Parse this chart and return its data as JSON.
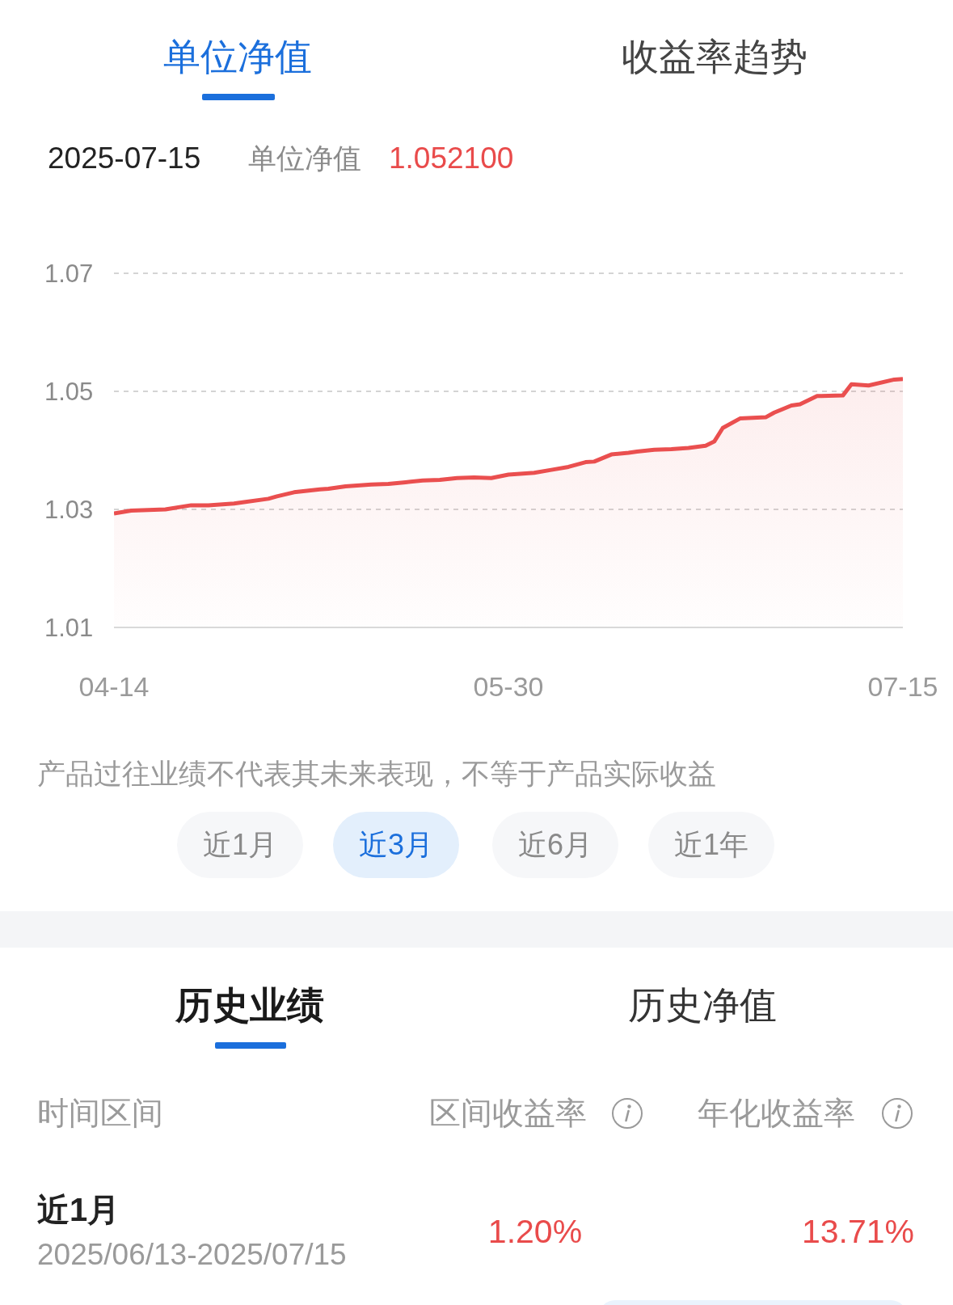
{
  "chart_data": [
    {
      "type": "area",
      "x": [
        "2025-04-14",
        "2025-04-16",
        "2025-04-20",
        "2025-04-23",
        "2025-04-25",
        "2025-04-28",
        "2025-04-29",
        "2025-05-02",
        "2025-05-03",
        "2025-05-05",
        "2025-05-08",
        "2025-05-09",
        "2025-05-11",
        "2025-05-14",
        "2025-05-16",
        "2025-05-18",
        "2025-05-20",
        "2025-05-22",
        "2025-05-24",
        "2025-05-26",
        "2025-05-28",
        "2025-05-30",
        "2025-06-02",
        "2025-06-04",
        "2025-06-06",
        "2025-06-08",
        "2025-06-09",
        "2025-06-11",
        "2025-06-13",
        "2025-06-14",
        "2025-06-16",
        "2025-06-18",
        "2025-06-20",
        "2025-06-22",
        "2025-06-23",
        "2025-06-24",
        "2025-06-26",
        "2025-06-29",
        "2025-06-30",
        "2025-07-02",
        "2025-07-03",
        "2025-07-05",
        "2025-07-08",
        "2025-07-09",
        "2025-07-11",
        "2025-07-14",
        "2025-07-15"
      ],
      "series": [
        {
          "color": "#ea4f4f",
          "values": [
            1.0293,
            1.0298,
            1.03,
            1.0307,
            1.0307,
            1.031,
            1.0312,
            1.0318,
            1.0322,
            1.0329,
            1.0334,
            1.0335,
            1.0339,
            1.0342,
            1.0343,
            1.0346,
            1.0349,
            1.035,
            1.0353,
            1.0354,
            1.0353,
            1.0359,
            1.0362,
            1.0367,
            1.0372,
            1.038,
            1.0381,
            1.0393,
            1.0396,
            1.0398,
            1.0401,
            1.0402,
            1.0404,
            1.0408,
            1.0415,
            1.0438,
            1.0454,
            1.0456,
            1.0464,
            1.0476,
            1.0478,
            1.0492,
            1.0493,
            1.0512,
            1.051,
            1.052,
            1.0521
          ]
        }
      ],
      "xlim": [
        "2025-04-14",
        "2025-07-15"
      ],
      "xticks": [
        {
          "value": "2025-04-14",
          "label": "04-14"
        },
        {
          "value": "2025-05-30",
          "label": "05-30"
        },
        {
          "value": "2025-07-15",
          "label": "07-15"
        }
      ],
      "ylim": [
        1.01,
        1.07
      ],
      "yticks": [
        1.01,
        1.03,
        1.05,
        1.07
      ],
      "grid": "y",
      "annotations": [
        "单位净值",
        "收益率趋势",
        "2025-07-15",
        "单位净值",
        "1.052100",
        "产品过往业绩不代表其未来表现，不等于产品实际收益",
        "近1月",
        "近3月",
        "近6月",
        "近1年"
      ]
    },
    {
      "type": "other",
      "annotations": [
        "历史业绩",
        "历史净值",
        "时间区间",
        "区间收益率",
        "年化收益率",
        "近1月",
        "2025/06/13-2025/07/15",
        "1.20%",
        "13.71%"
      ]
    }
  ]
}
